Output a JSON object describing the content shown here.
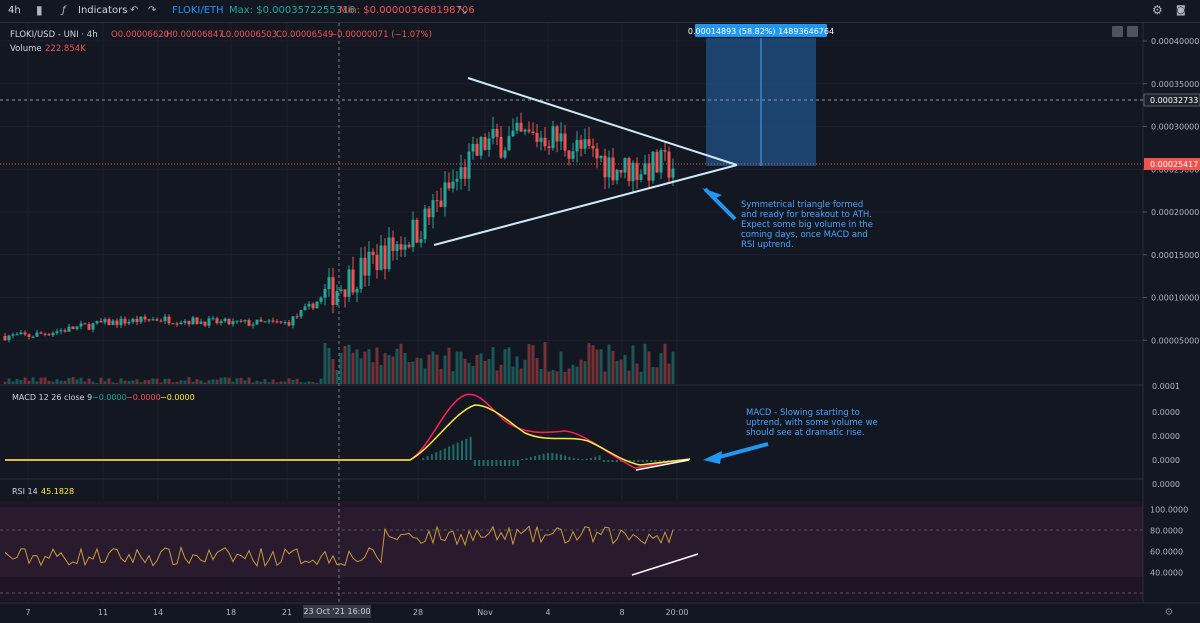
{
  "toolbar": {
    "interval": "4h",
    "indicators_label": "Indicators",
    "compare_symbol": "FLOKI/ETH",
    "max_label": "Max: $0.0003572255316",
    "min_label": "Min: $0.000003668198706",
    "icons": [
      "candles-icon",
      "fx-icon",
      "undo-icon",
      "redo-icon",
      "expand-icon",
      "settings-icon",
      "camera-icon"
    ]
  },
  "legend": {
    "symbol": "FLOKI/USD - UNI · 4h",
    "open": "O0.00006620",
    "high": "H0.00006847",
    "low": "L0.00006503",
    "close": "C0.00006549",
    "change": "−0.00000071 (−1.07%)",
    "volume_label": "Volume",
    "volume_value": "222.854K"
  },
  "measure_label": "0.00014893 (58.82%) 14893646764",
  "price_badges": {
    "upper": "0.00032733",
    "current": "0.00025417"
  },
  "price_axis_ticks": [
    "0.00040000",
    "0.00035000",
    "0.00030000",
    "0.00025000",
    "0.00020000",
    "0.00015000",
    "0.00010000",
    "0.00005000"
  ],
  "macd": {
    "title": "MACD 12 26 close 9",
    "v1": "−0.0000",
    "v2": "−0.0000",
    "v3": "−0.0000",
    "axis_ticks": [
      "0.0000",
      "0.0000",
      "0.0000",
      "0.0000"
    ],
    "top_tick": "0.0001"
  },
  "rsi": {
    "title": "RSI 14",
    "value": "45.1828",
    "axis_ticks": [
      "100.0000",
      "80.0000",
      "60.0000",
      "40.0000"
    ]
  },
  "time_axis": {
    "ticks": [
      "7",
      "11",
      "14",
      "18",
      "21",
      "28",
      "Nov",
      "4",
      "8",
      "20:00"
    ],
    "crosshair_label": "23 Oct '21  16:00"
  },
  "annotations": {
    "triangle": "Symmetrical triangle formed and ready for breakout to ATH. Expect some big volume in the coming days, once MACD and RSI uptrend.",
    "macd": "MACD - Slowing starting to uptrend, with some volume we should see at dramatic rise."
  },
  "colors": {
    "bg": "#131722",
    "up": "#26a69a",
    "down": "#ef5350",
    "macd_line": "#ff1e5a",
    "signal_line": "#ffeb3b",
    "rsi_line": "#c49a3c",
    "accent": "#2196f3",
    "annotation": "#4aa3ff"
  },
  "chart_data": [
    {
      "type": "candlestick",
      "title": "FLOKI/USD - UNI · 4h",
      "x_ticks": [
        "7",
        "11",
        "14",
        "18",
        "21",
        "28",
        "Nov",
        "4",
        "8",
        "20:00"
      ],
      "ylim": [
        0,
        0.00042
      ],
      "notes": "Price consolidates near 0.00006 until ~28 Oct, spikes to ~0.000355, then forms a symmetrical triangle converging near 0.000254.",
      "series": [
        {
          "name": "price_close",
          "x": [
            "7",
            "11",
            "14",
            "18",
            "21",
            "28",
            "Nov",
            "4",
            "8",
            "20:00"
          ],
          "values": [
            5.5e-05,
            7e-05,
            7.5e-05,
            7e-05,
            7e-05,
            0.00018,
            0.00028,
            0.00029,
            0.00025,
            0.000255
          ]
        }
      ],
      "reference_lines": [
        0.00032733,
        0.00025417
      ]
    },
    {
      "type": "line",
      "title": "MACD 12 26 close 9",
      "x_ticks": [
        "7",
        "11",
        "14",
        "18",
        "21",
        "28",
        "Nov",
        "4",
        "8",
        "20:00"
      ],
      "series": [
        {
          "values": [
            0,
            0,
            0,
            0,
            0,
            6e-05,
            4e-05,
            2e-05,
            -1e-05,
            0
          ]
        },
        {
          "values": [
            0,
            0,
            0,
            0,
            0,
            5e-05,
            4.5e-05,
            2e-05,
            -5e-06,
            0
          ]
        }
      ]
    },
    {
      "type": "line",
      "title": "RSI 14",
      "x_ticks": [
        "7",
        "11",
        "14",
        "18",
        "21",
        "28",
        "Nov",
        "4",
        "8",
        "20:00"
      ],
      "ylim": [
        30,
        100
      ],
      "series": [
        {
          "name": "RSI 14",
          "values": [
            48,
            58,
            55,
            52,
            45,
            88,
            62,
            57,
            48,
            45.18
          ]
        }
      ]
    }
  ]
}
